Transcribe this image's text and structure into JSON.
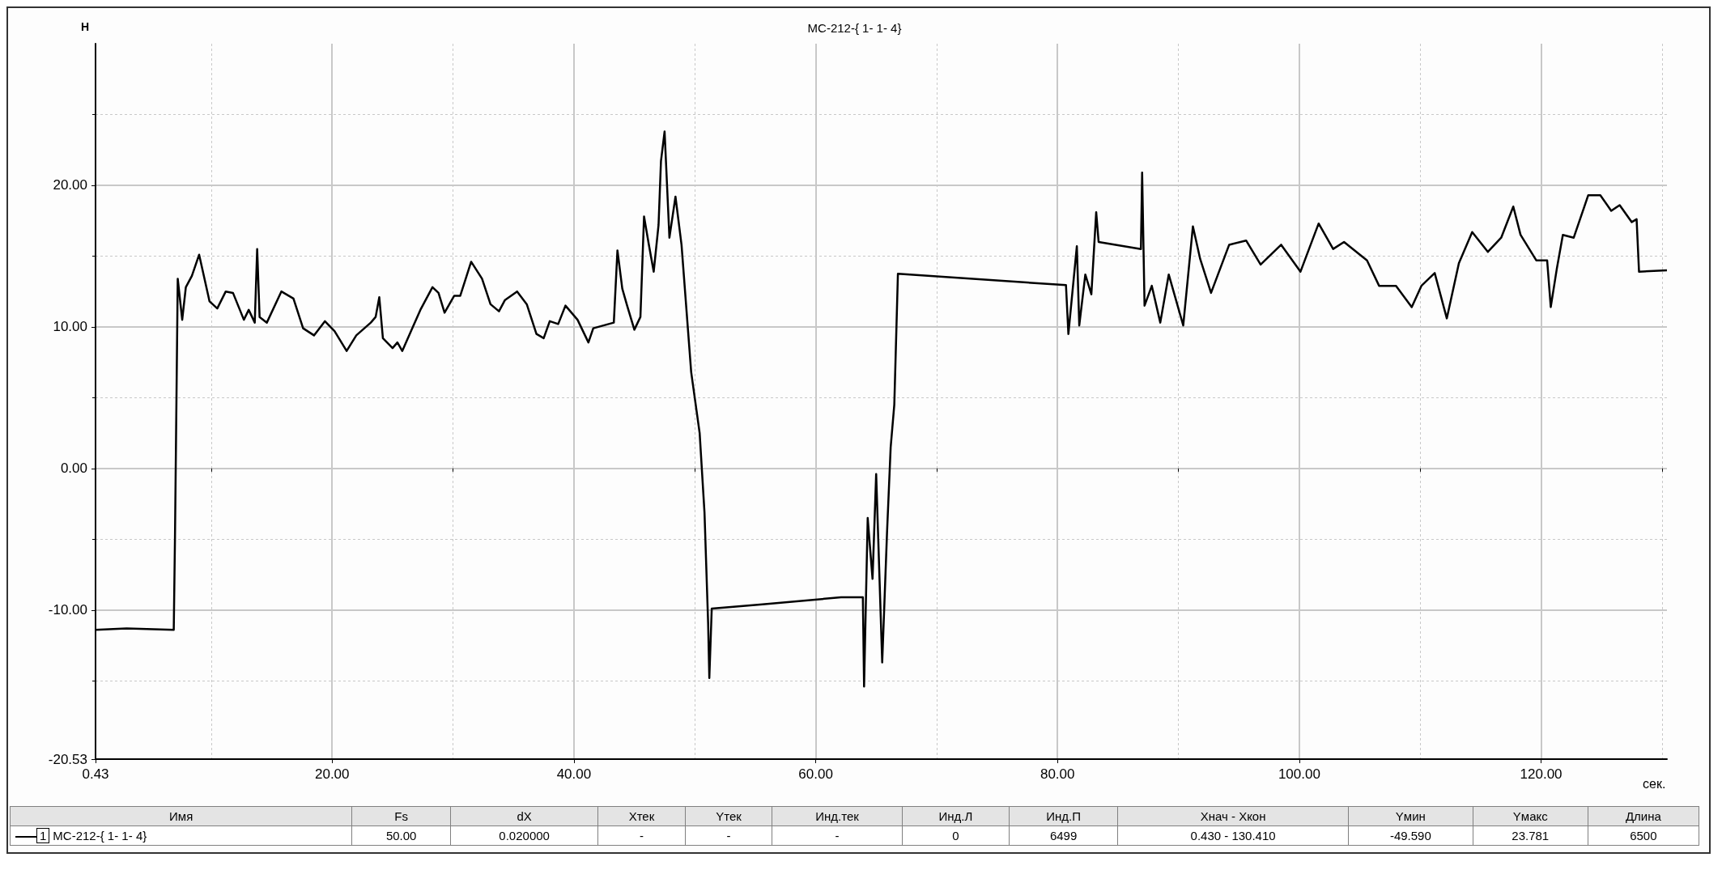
{
  "chart_data": {
    "type": "line",
    "title": "МС-212-{ 1- 1- 4}",
    "xlabel": "сек.",
    "ylabel": "Н",
    "xlim": [
      0.43,
      130.41
    ],
    "xticks": [
      0.43,
      {
        "value": 10,
        "label": null
      },
      {
        "value": 20,
        "label": "20.00"
      },
      {
        "value": 30,
        "label": null
      },
      {
        "value": 40,
        "label": "40.00"
      },
      {
        "value": 50,
        "label": null
      },
      {
        "value": 60,
        "label": "60.00"
      },
      {
        "value": 70,
        "label": null
      },
      {
        "value": 80,
        "label": "80.00"
      },
      {
        "value": 90,
        "label": null
      },
      {
        "value": 100,
        "label": "100.00"
      },
      {
        "value": 110,
        "label": null
      },
      {
        "value": 120,
        "label": "120.00"
      },
      {
        "value": 130,
        "label": null
      }
    ],
    "ylim": [
      -20.53,
      30
    ],
    "yticks": [
      -20.53,
      {
        "value": -15,
        "label": null
      },
      {
        "value": -10,
        "label": "-10.00"
      },
      {
        "value": -5,
        "label": null
      },
      {
        "value": 0,
        "label": "0.00"
      },
      {
        "value": 5,
        "label": null
      },
      {
        "value": 10,
        "label": "10.00"
      },
      {
        "value": 15,
        "label": null
      },
      {
        "value": 20,
        "label": "20.00"
      },
      {
        "value": 25,
        "label": null
      }
    ],
    "grid": true,
    "legend": "bottom",
    "marker": "none",
    "line_style": "solid",
    "series": [
      {
        "name": "МС-212-{ 1- 1- 4}",
        "color": "#000000",
        "x": [
          0.43,
          3,
          6.9,
          7.0,
          7.23,
          7.6,
          7.9,
          8.4,
          9.0,
          9.86,
          10.5,
          11.2,
          11.8,
          12.7,
          13.1,
          13.6,
          13.8,
          14.0,
          14.6,
          15.8,
          16.8,
          17.6,
          18.5,
          19.4,
          20.2,
          21.2,
          22.0,
          23.2,
          23.6,
          23.9,
          24.2,
          25.0,
          25.4,
          25.8,
          27.3,
          28.3,
          28.8,
          29.3,
          30.1,
          30.6,
          31.5,
          32.4,
          33.1,
          33.8,
          34.3,
          35.3,
          36.1,
          36.9,
          37.5,
          38.0,
          38.7,
          39.3,
          40.3,
          41.2,
          41.6,
          43.3,
          43.6,
          44.0,
          44.4,
          45.0,
          45.5,
          45.8,
          46.2,
          46.6,
          47.0,
          47.2,
          47.5,
          47.9,
          48.4,
          48.9,
          49.7,
          50.4,
          50.8,
          51.1,
          51.2,
          51.4,
          55.6,
          62.1,
          63.9,
          64.0,
          64.3,
          64.7,
          65.0,
          65.5,
          65.9,
          66.2,
          66.5,
          66.8,
          80.7,
          80.9,
          81.6,
          81.8,
          82.3,
          82.8,
          83.2,
          83.4,
          86.9,
          87.0,
          87.2,
          87.8,
          88.5,
          89.2,
          90.4,
          91.2,
          91.8,
          92.7,
          94.2,
          95.6,
          96.8,
          98.5,
          100.1,
          101.6,
          102.8,
          103.7,
          105.6,
          106.6,
          108.0,
          109.3,
          110.1,
          111.2,
          112.2,
          113.2,
          114.3,
          115.6,
          116.7,
          117.7,
          118.3,
          119.6,
          120.5,
          120.8,
          121.3,
          121.8,
          122.7,
          123.9,
          124.9,
          125.8,
          126.5,
          127.5,
          127.9,
          128.1,
          130.41
        ],
        "values": [
          -11.4,
          -11.3,
          -11.4,
          -5,
          13.4,
          10.5,
          12.8,
          13.6,
          15.1,
          11.8,
          11.3,
          12.5,
          12.4,
          10.5,
          11.2,
          10.3,
          15.5,
          10.7,
          10.3,
          12.5,
          12.0,
          9.9,
          9.4,
          10.4,
          9.7,
          8.3,
          9.4,
          10.3,
          10.7,
          12.1,
          9.2,
          8.5,
          8.9,
          8.3,
          11.2,
          12.8,
          12.4,
          11.0,
          12.2,
          12.2,
          14.6,
          13.4,
          11.6,
          11.1,
          11.9,
          12.5,
          11.6,
          9.5,
          9.2,
          10.4,
          10.2,
          11.5,
          10.5,
          8.9,
          9.9,
          10.3,
          15.4,
          12.7,
          11.5,
          9.8,
          10.7,
          17.8,
          15.8,
          13.9,
          17.2,
          21.7,
          23.8,
          16.3,
          19.2,
          15.8,
          6.8,
          2.5,
          -3.1,
          -10.9,
          -14.8,
          -9.9,
          -9.6,
          -9.1,
          -9.1,
          -15.4,
          -3.5,
          -7.8,
          -0.4,
          -13.7,
          -4.5,
          1.5,
          4.5,
          13.75,
          12.95,
          9.5,
          15.7,
          10.1,
          13.7,
          12.3,
          18.1,
          16.0,
          15.5,
          20.9,
          11.5,
          12.9,
          10.3,
          13.7,
          10.1,
          17.1,
          14.8,
          12.4,
          15.8,
          16.1,
          14.4,
          15.8,
          13.9,
          17.3,
          15.5,
          16.0,
          14.7,
          12.9,
          12.9,
          11.4,
          12.9,
          13.8,
          10.6,
          14.5,
          16.7,
          15.3,
          16.3,
          18.5,
          16.5,
          14.7,
          14.7,
          11.4,
          14.1,
          16.5,
          16.3,
          19.3,
          19.3,
          18.2,
          18.6,
          17.4,
          17.6,
          13.9,
          14.0
        ]
      }
    ],
    "annotations": [
      "Имя",
      "Fs",
      "dX",
      "Xтек",
      "Yтек",
      "Инд.тек",
      "Инд.Л",
      "Инд.П",
      "Xнач - Xкон",
      "Yмин",
      "Yмакс",
      "Длина",
      "1",
      "50.00",
      "0.020000",
      "-",
      "-",
      "-",
      "0",
      "6499",
      "0.430 - 130.410",
      "-49.590",
      "23.781",
      "6500"
    ]
  }
}
